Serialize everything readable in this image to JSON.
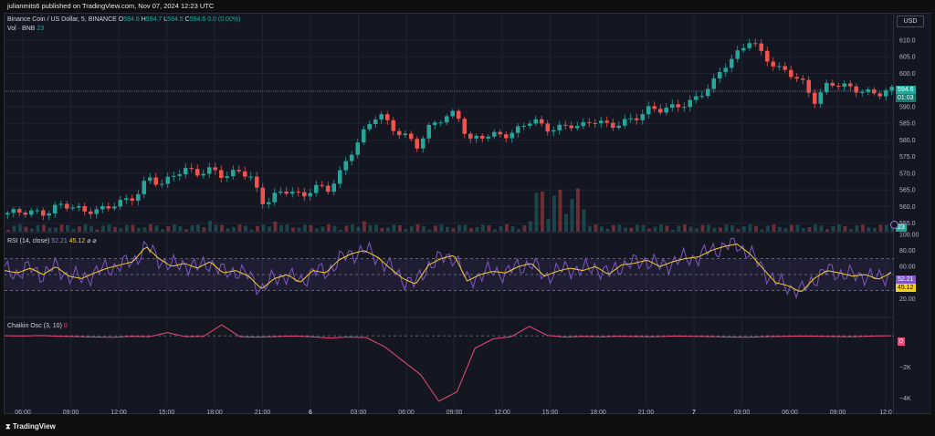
{
  "publish_bar": "julianmits6 published on TradingView.com, Nov 07, 2024 12:23 UTC",
  "main_legend": {
    "symbol": "Binance Coin / US Dollar, 5, BINANCE",
    "o_label": "O",
    "o_value": "594.6",
    "h_label": "H",
    "h_value": "594.7",
    "l_label": "L",
    "l_value": "594.5",
    "c_label": "C",
    "c_value": "594.6",
    "change": "0.0 (0.00%)",
    "vol_label": "Vol · BNB",
    "vol_value": "23"
  },
  "rsi_legend": {
    "label": "RSI (14, close)",
    "rsi_value": "52.21",
    "ma_value": "45.12",
    "glyph1": "⌀",
    "glyph2": "⌀"
  },
  "chaikin_legend": {
    "label": "Chaikin Osc (3, 10)",
    "value": "0"
  },
  "currency_button": "USD",
  "price_axis": [
    "610.0",
    "605.0",
    "600.0",
    "595.0",
    "590.0",
    "585.0",
    "580.0",
    "575.0",
    "570.0",
    "565.0",
    "560.0",
    "555.0"
  ],
  "rsi_axis": [
    "100.00",
    "80.00",
    "60.00",
    "20.00"
  ],
  "chaikin_axis": [
    "−2K",
    "−4K"
  ],
  "tags": {
    "last_price": "594.6",
    "countdown": "01:03",
    "volume": "23",
    "rsi": "52.21",
    "rsi_ma": "45.12",
    "chaikin": "0"
  },
  "time_axis": [
    "06:00",
    "09:00",
    "12:00",
    "15:00",
    "18:00",
    "21:00",
    "6",
    "03:00",
    "06:00",
    "09:00",
    "12:00",
    "15:00",
    "18:00",
    "21:00",
    "7",
    "03:00",
    "06:00",
    "09:00",
    "12:0"
  ],
  "brand": "TradingView",
  "colors": {
    "up": "#26a69a",
    "down": "#ef5350",
    "rsi": "#7e57c2",
    "rsi_ma": "#f5d020",
    "chaikin": "#e84a7a",
    "bg": "#141722"
  },
  "chart_data": [
    {
      "type": "candlestick",
      "title": "Binance Coin / US Dollar, 5, BINANCE",
      "ylim": [
        553,
        613
      ],
      "x": [
        "06:00",
        "09:00",
        "12:00",
        "15:00",
        "18:00",
        "21:00",
        "6",
        "03:00",
        "06:00",
        "09:00",
        "12:00",
        "15:00",
        "18:00",
        "21:00",
        "7",
        "03:00",
        "06:00",
        "09:00",
        "12:0"
      ],
      "close_path": [
        557.5,
        558.3,
        559.0,
        558.2,
        560.1,
        559.4,
        558.8,
        559.5,
        560.2,
        561.0,
        562.5,
        569.5,
        567.0,
        569.5,
        570.5,
        569.8,
        572.0,
        569.0,
        570.5,
        568.0,
        561.0,
        564.5,
        565.0,
        562.0,
        566.0,
        565.5,
        571.0,
        577.0,
        583.0,
        588.5,
        584.0,
        581.5,
        577.5,
        584.0,
        587.0,
        589.0,
        579.5,
        580.5,
        581.5,
        582.0,
        584.0,
        586.0,
        582.5,
        584.0,
        585.0,
        584.5,
        585.5,
        583.5,
        586.0,
        587.0,
        589.0,
        588.5,
        590.0,
        591.5,
        593.5,
        596.5,
        602.0,
        606.5,
        611.0,
        605.0,
        601.0,
        600.0,
        598.0,
        592.0,
        596.5,
        596.0,
        595.5,
        595.0,
        594.0,
        594.6
      ]
    },
    {
      "type": "line",
      "title": "RSI (14, close)",
      "ylim": [
        0,
        100
      ],
      "series": [
        {
          "name": "RSI (14, close)",
          "values": [
            55,
            52,
            58,
            50,
            60,
            48,
            45,
            52,
            58,
            62,
            66,
            85,
            70,
            60,
            64,
            58,
            66,
            52,
            55,
            48,
            32,
            45,
            50,
            40,
            55,
            52,
            68,
            76,
            80,
            72,
            58,
            45,
            38,
            62,
            70,
            74,
            42,
            50,
            54,
            52,
            60,
            64,
            48,
            54,
            58,
            55,
            60,
            50,
            62,
            64,
            68,
            60,
            66,
            70,
            72,
            80,
            85,
            88,
            76,
            58,
            40,
            36,
            28,
            45,
            55,
            52,
            48,
            50,
            44,
            52.21
          ]
        }
      ]
    },
    {
      "type": "line",
      "title": "Chaikin Osc (3, 10)",
      "ylim": [
        -4500,
        1000
      ],
      "series": [
        {
          "name": "Chaikin Osc (3, 10)",
          "values": [
            0,
            -20,
            10,
            -30,
            -50,
            -80,
            -100,
            -40,
            -60,
            200,
            -60,
            -40,
            700,
            -60,
            -90,
            -50,
            -20,
            -70,
            -150,
            -80,
            -120,
            -700,
            -1600,
            -2500,
            -4200,
            -3600,
            -800,
            -200,
            -60,
            600,
            20,
            -80,
            -40,
            -70,
            -30,
            -50,
            -60,
            -20,
            -40,
            -50,
            -80,
            -100,
            -60,
            -40,
            -20,
            -30,
            -50,
            -60,
            -20,
            0
          ]
        }
      ]
    }
  ]
}
